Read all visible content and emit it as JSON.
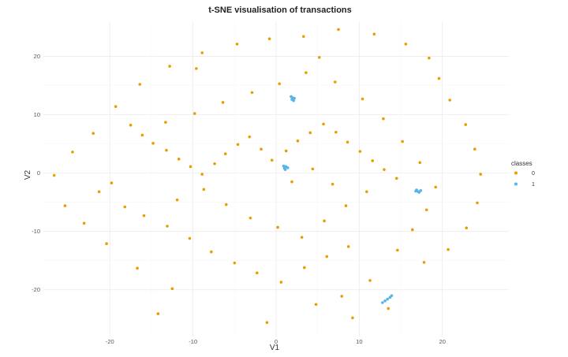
{
  "chart_data": {
    "type": "scatter",
    "title": "t-SNE visualisation of transactions",
    "xlabel": "V1",
    "ylabel": "V2",
    "xlim": [
      -28,
      28
    ],
    "ylim": [
      -28,
      26
    ],
    "xticks": [
      -20,
      -10,
      0,
      10,
      20
    ],
    "yticks": [
      -20,
      -10,
      0,
      10,
      20
    ],
    "grid": true,
    "legend": {
      "title": "classes",
      "placement": "right"
    },
    "series": [
      {
        "name": "0",
        "color": "#E69F00",
        "points": [
          [
            -17.5,
            8.2
          ],
          [
            -16.1,
            6.5
          ],
          [
            -14.8,
            5.1
          ],
          [
            -13.2,
            3.9
          ],
          [
            -11.7,
            2.4
          ],
          [
            -10.3,
            1.1
          ],
          [
            -8.9,
            -0.2
          ],
          [
            -7.4,
            1.6
          ],
          [
            -6.1,
            3.3
          ],
          [
            -4.6,
            4.9
          ],
          [
            -3.2,
            6.2
          ],
          [
            -1.8,
            4.1
          ],
          [
            -0.5,
            2.2
          ],
          [
            1.2,
            3.8
          ],
          [
            2.6,
            5.5
          ],
          [
            4.1,
            6.9
          ],
          [
            5.7,
            8.4
          ],
          [
            7.2,
            7.0
          ],
          [
            8.6,
            5.3
          ],
          [
            10.1,
            3.7
          ],
          [
            11.6,
            2.1
          ],
          [
            13.0,
            0.6
          ],
          [
            14.5,
            -0.9
          ],
          [
            -19.8,
            -1.7
          ],
          [
            -21.3,
            -3.2
          ],
          [
            -18.2,
            -5.8
          ],
          [
            -15.9,
            -7.3
          ],
          [
            -13.1,
            -9.1
          ],
          [
            -10.4,
            -11.2
          ],
          [
            -7.8,
            -13.5
          ],
          [
            -5.0,
            -15.4
          ],
          [
            -2.3,
            -17.1
          ],
          [
            0.6,
            -18.7
          ],
          [
            3.4,
            -16.2
          ],
          [
            6.1,
            -14.3
          ],
          [
            8.7,
            -12.6
          ],
          [
            11.3,
            -18.4
          ],
          [
            7.9,
            -21.1
          ],
          [
            4.8,
            -22.5
          ],
          [
            -1.1,
            -25.6
          ],
          [
            -12.5,
            -19.8
          ],
          [
            -16.7,
            -16.3
          ],
          [
            -20.4,
            -12.1
          ],
          [
            -23.1,
            -8.6
          ],
          [
            -24.5,
            3.6
          ],
          [
            -22.0,
            6.8
          ],
          [
            -19.3,
            11.4
          ],
          [
            -16.4,
            15.2
          ],
          [
            -12.8,
            18.3
          ],
          [
            -8.9,
            20.6
          ],
          [
            -4.7,
            22.1
          ],
          [
            -0.8,
            23.0
          ],
          [
            3.3,
            23.4
          ],
          [
            7.5,
            24.6
          ],
          [
            11.8,
            23.8
          ],
          [
            15.6,
            22.1
          ],
          [
            18.4,
            19.7
          ],
          [
            19.6,
            16.2
          ],
          [
            20.9,
            12.5
          ],
          [
            22.8,
            8.3
          ],
          [
            23.9,
            4.1
          ],
          [
            24.6,
            -0.2
          ],
          [
            24.2,
            -5.1
          ],
          [
            22.9,
            -9.4
          ],
          [
            20.7,
            -13.1
          ],
          [
            17.8,
            -15.3
          ],
          [
            14.6,
            -13.2
          ],
          [
            16.4,
            -9.7
          ],
          [
            18.1,
            -6.3
          ],
          [
            19.2,
            -2.4
          ],
          [
            17.3,
            1.8
          ],
          [
            15.2,
            5.4
          ],
          [
            12.9,
            9.3
          ],
          [
            10.4,
            12.7
          ],
          [
            7.1,
            15.6
          ],
          [
            3.6,
            17.2
          ],
          [
            0.4,
            15.3
          ],
          [
            -2.9,
            13.8
          ],
          [
            -6.4,
            12.1
          ],
          [
            -9.8,
            10.2
          ],
          [
            -13.3,
            8.7
          ],
          [
            -6.0,
            -5.4
          ],
          [
            -3.1,
            -7.7
          ],
          [
            0.2,
            -9.3
          ],
          [
            3.1,
            -11.0
          ],
          [
            5.8,
            -8.2
          ],
          [
            8.4,
            -5.6
          ],
          [
            10.9,
            -3.2
          ],
          [
            -8.7,
            -2.8
          ],
          [
            -11.9,
            -4.6
          ],
          [
            1.9,
            -1.5
          ],
          [
            4.4,
            0.7
          ],
          [
            6.8,
            -1.9
          ],
          [
            -26.7,
            -0.4
          ],
          [
            -25.4,
            -5.6
          ],
          [
            -14.2,
            -24.1
          ],
          [
            9.2,
            -24.8
          ],
          [
            13.5,
            -23.2
          ],
          [
            -9.6,
            17.9
          ],
          [
            5.2,
            19.8
          ]
        ]
      },
      {
        "name": "1",
        "color": "#56B4E9",
        "points": [
          [
            1.9,
            12.6
          ],
          [
            2.0,
            12.9
          ],
          [
            1.8,
            13.1
          ],
          [
            2.1,
            12.4
          ],
          [
            2.2,
            12.8
          ],
          [
            1.0,
            0.8
          ],
          [
            1.2,
            1.1
          ],
          [
            0.9,
            1.2
          ],
          [
            1.4,
            0.9
          ],
          [
            1.1,
            0.6
          ],
          [
            16.8,
            -3.1
          ],
          [
            17.1,
            -3.2
          ],
          [
            17.4,
            -3.0
          ],
          [
            17.2,
            -3.3
          ],
          [
            16.9,
            -2.9
          ],
          [
            13.1,
            -21.9
          ],
          [
            13.4,
            -21.6
          ],
          [
            13.7,
            -21.3
          ],
          [
            12.8,
            -22.2
          ],
          [
            13.9,
            -21.0
          ]
        ]
      }
    ]
  }
}
